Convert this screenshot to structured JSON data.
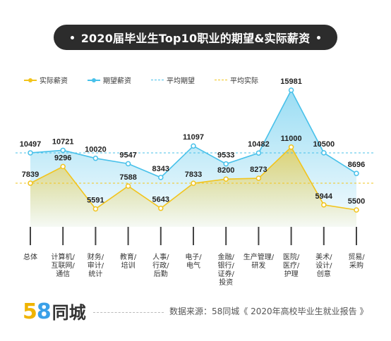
{
  "title": "2020届毕业生Top10职业的期望&实际薪资",
  "legend": {
    "actual": "实际薪资",
    "expected": "期望薪资",
    "avg_expected": "平均期望",
    "avg_actual": "平均实际"
  },
  "colors": {
    "actual": "#f2c41c",
    "expected": "#48c1ea",
    "avg_expected": "#48c1ea",
    "avg_actual": "#f2c41c",
    "title_bg": "#2c2c2c"
  },
  "footer": {
    "logo_5": "5",
    "logo_8": "8",
    "logo_text": "同城",
    "source": "数据来源：58同城《 2020年高校毕业生就业报告 》"
  },
  "chart_data": {
    "type": "line",
    "title": "2020届毕业生Top10职业的期望&实际薪资",
    "categories": [
      [
        "总体"
      ],
      [
        "计算机/",
        "互联网/",
        "通信"
      ],
      [
        "财务/",
        "审计/",
        "统计"
      ],
      [
        "教育/",
        "培训"
      ],
      [
        "人事/",
        "行政/",
        "后勤"
      ],
      [
        "电子/",
        "电气"
      ],
      [
        "金融/",
        "银行/",
        "证券/",
        "投资"
      ],
      [
        "生产管理/",
        "研发"
      ],
      [
        "医院/",
        "医疗/",
        "护理"
      ],
      [
        "美术/",
        "设计/",
        "创意"
      ],
      [
        "贸易/",
        "采购"
      ]
    ],
    "series": [
      {
        "name": "实际薪资",
        "values": [
          7839,
          9296,
          5591,
          7588,
          5643,
          7833,
          8200,
          8273,
          11000,
          5944,
          5500
        ]
      },
      {
        "name": "期望薪资",
        "values": [
          10497,
          10721,
          10020,
          9547,
          8343,
          11097,
          9533,
          10482,
          15981,
          10500,
          8696
        ]
      }
    ],
    "reference_lines": [
      {
        "name": "平均期望",
        "value": 10497
      },
      {
        "name": "平均实际",
        "value": 7839
      }
    ],
    "legend_position": "top-left",
    "grid": false
  }
}
